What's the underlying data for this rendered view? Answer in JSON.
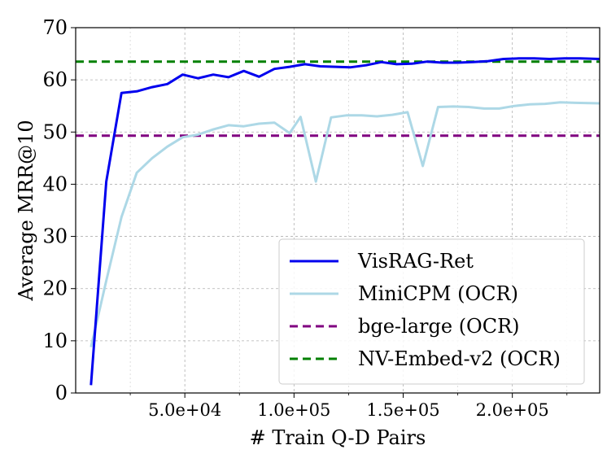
{
  "chart_data": {
    "type": "line",
    "title": "",
    "xlabel": "# Train Q-D Pairs",
    "ylabel": "Average MRR@10",
    "xlim": [
      0,
      240000
    ],
    "ylim": [
      0,
      70
    ],
    "x_ticks": [
      50000,
      100000,
      150000,
      200000
    ],
    "x_tick_labels": [
      "5.0e+04",
      "1.0e+05",
      "1.5e+05",
      "2.0e+05"
    ],
    "x_minor_ticks": [
      25000,
      75000,
      125000,
      175000,
      225000
    ],
    "y_ticks": [
      0,
      10,
      20,
      30,
      40,
      50,
      60,
      70
    ],
    "y_tick_labels": [
      "0",
      "10",
      "20",
      "30",
      "40",
      "50",
      "60",
      "70"
    ],
    "grid": true,
    "legend_position": "lower-right",
    "series": [
      {
        "name": "VisRAG-Ret",
        "color": "#0000ee",
        "dash": "solid",
        "x": [
          7000,
          14000,
          21000,
          28000,
          35000,
          42000,
          49000,
          56000,
          63000,
          70000,
          77000,
          84000,
          91000,
          98000,
          105000,
          112000,
          119000,
          126000,
          133000,
          140000,
          147000,
          154000,
          161000,
          168000,
          175000,
          182000,
          189000,
          196000,
          203000,
          210000,
          217000,
          224000,
          231000,
          240000
        ],
        "y": [
          1.5,
          40.5,
          57.5,
          57.8,
          58.6,
          59.2,
          61.0,
          60.3,
          61.0,
          60.5,
          61.7,
          60.6,
          62.1,
          62.5,
          63.0,
          62.6,
          62.5,
          62.4,
          62.8,
          63.4,
          63.0,
          63.1,
          63.5,
          63.3,
          63.3,
          63.4,
          63.6,
          64.0,
          64.1,
          64.1,
          64.0,
          64.1,
          64.1,
          64.0
        ]
      },
      {
        "name": "MiniCPM (OCR)",
        "color": "#add8e6",
        "dash": "solid",
        "x": [
          7000,
          14000,
          21000,
          28000,
          35000,
          42000,
          49000,
          56000,
          63000,
          70000,
          77000,
          84000,
          91000,
          98000,
          103000,
          110000,
          117000,
          124000,
          131000,
          138000,
          145000,
          152000,
          159000,
          166000,
          173000,
          180000,
          187000,
          194000,
          201000,
          208000,
          215000,
          222000,
          229000,
          240000
        ],
        "y": [
          8.8,
          21.5,
          33.7,
          42.2,
          45.0,
          47.2,
          49.0,
          49.5,
          50.5,
          51.3,
          51.1,
          51.6,
          51.8,
          49.8,
          52.9,
          40.5,
          52.8,
          53.2,
          53.2,
          53.0,
          53.3,
          53.8,
          43.5,
          54.8,
          54.9,
          54.8,
          54.5,
          54.5,
          55.0,
          55.3,
          55.4,
          55.7,
          55.6,
          55.5
        ]
      },
      {
        "name": "bge-large (OCR)",
        "color": "#800080",
        "dash": "dashed",
        "x": [
          0,
          240000
        ],
        "y": [
          49.3,
          49.3
        ]
      },
      {
        "name": "NV-Embed-v2 (OCR)",
        "color": "#008000",
        "dash": "dashed",
        "x": [
          0,
          240000
        ],
        "y": [
          63.5,
          63.5
        ]
      }
    ]
  }
}
